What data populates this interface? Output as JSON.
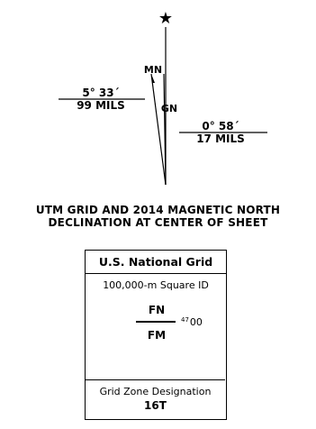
{
  "diagram": {
    "star_icon": "star-icon",
    "mn_label": "MN",
    "gn_label": "GN",
    "magnetic_angle": "5° 33´",
    "magnetic_mils": "99 MILS",
    "grid_angle": "0° 58´",
    "grid_mils": "17 MILS"
  },
  "caption": {
    "line1": "UTM GRID AND 2014 MAGNETIC NORTH",
    "line2": "DECLINATION AT CENTER OF SHEET"
  },
  "grid_box": {
    "title": "U.S. National Grid",
    "square_id_label": "100,000-m Square ID",
    "square_top": "FN",
    "square_bottom": "FM",
    "coord_sup": "47",
    "coord_main": "00",
    "zone_label": "Grid Zone Designation",
    "zone_value": "16T"
  }
}
